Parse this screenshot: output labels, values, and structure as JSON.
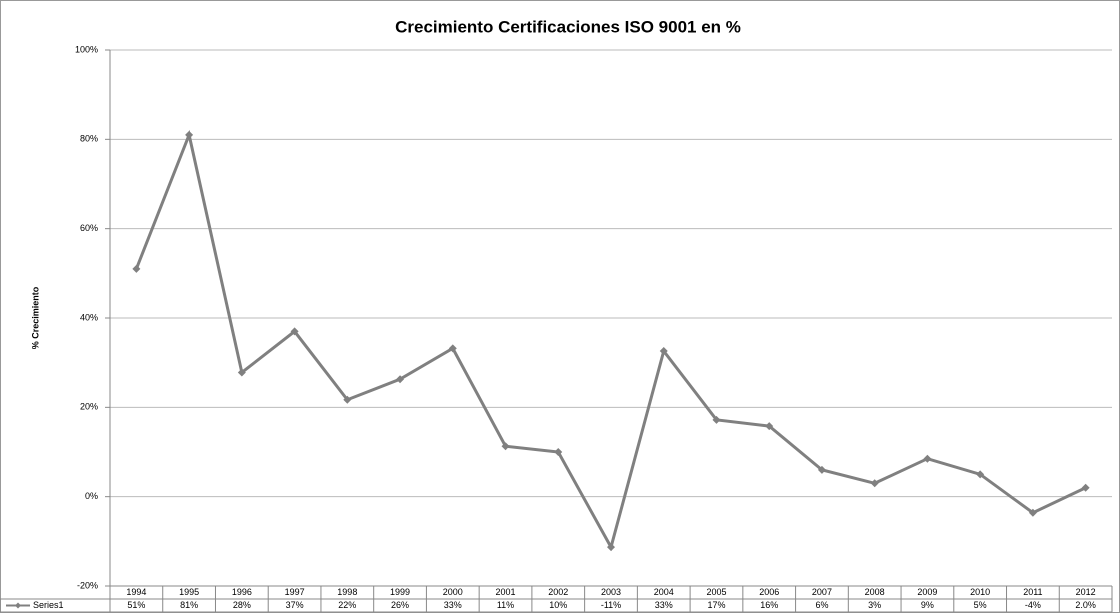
{
  "chart_data": {
    "type": "line",
    "title": "Crecimiento Certificaciones ISO 9001 en %",
    "y_label": "% Crecimiento",
    "categories": [
      "1994",
      "1995",
      "1996",
      "1997",
      "1998",
      "1999",
      "2000",
      "2001",
      "2002",
      "2003",
      "2004",
      "2005",
      "2006",
      "2007",
      "2008",
      "2009",
      "2010",
      "2011",
      "2012"
    ],
    "series": [
      {
        "name": "Series1",
        "color": "#808080",
        "values": [
          51,
          81,
          27.8,
          37,
          21.7,
          26.3,
          33.2,
          11.3,
          10,
          -11.3,
          32.6,
          17.2,
          15.8,
          6,
          3,
          8.5,
          5,
          -3.6,
          2.0
        ],
        "value_labels": [
          "51%",
          "81%",
          "28%",
          "37%",
          "22%",
          "26%",
          "33%",
          "11%",
          "10%",
          "-11%",
          "33%",
          "17%",
          "16%",
          "6%",
          "3%",
          "9%",
          "5%",
          "-4%",
          "2.0%"
        ]
      }
    ],
    "ylim": [
      -20,
      100
    ],
    "yticks": [
      {
        "value": -20,
        "label": "-20%"
      },
      {
        "value": 0,
        "label": "0%"
      },
      {
        "value": 20,
        "label": "20%"
      },
      {
        "value": 40,
        "label": "40%"
      },
      {
        "value": 60,
        "label": "60%"
      },
      {
        "value": 80,
        "label": "80%"
      },
      {
        "value": 100,
        "label": "100%"
      }
    ],
    "grid": true
  }
}
